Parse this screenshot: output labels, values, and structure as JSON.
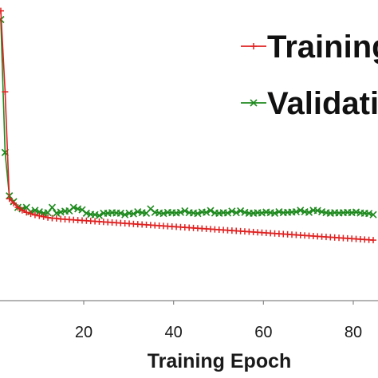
{
  "chart_data": {
    "type": "line",
    "xlabel": "Training Epoch",
    "ylabel": "",
    "title": "",
    "xlim": [
      0,
      88
    ],
    "ylim": [
      0,
      1.0
    ],
    "xticks": [
      20,
      40,
      60,
      80
    ],
    "grid": false,
    "legend_position": "top-right",
    "series": [
      {
        "name": "Training",
        "color": "#e02020",
        "marker": "plus",
        "x": [
          1,
          2,
          3,
          4,
          5,
          6,
          7,
          8,
          9,
          10,
          11,
          12,
          13,
          14,
          15,
          16,
          17,
          18,
          19,
          20,
          21,
          22,
          23,
          24,
          25,
          26,
          27,
          28,
          29,
          30,
          31,
          32,
          33,
          34,
          35,
          36,
          37,
          38,
          39,
          40,
          41,
          42,
          43,
          44,
          45,
          46,
          47,
          48,
          49,
          50,
          51,
          52,
          53,
          54,
          55,
          56,
          57,
          58,
          59,
          60,
          61,
          62,
          63,
          64,
          65,
          66,
          67,
          68,
          69,
          70,
          71,
          72,
          73,
          74,
          75,
          76,
          77,
          78,
          79,
          80,
          81,
          82,
          83,
          84,
          85,
          86,
          87,
          88
        ],
        "y": [
          0.98,
          0.7,
          0.33,
          0.315,
          0.3,
          0.29,
          0.283,
          0.278,
          0.274,
          0.271,
          0.268,
          0.265,
          0.263,
          0.262,
          0.26,
          0.259,
          0.258,
          0.257,
          0.256,
          0.255,
          0.254,
          0.253,
          0.252,
          0.251,
          0.25,
          0.249,
          0.248,
          0.247,
          0.246,
          0.245,
          0.244,
          0.243,
          0.242,
          0.241,
          0.24,
          0.239,
          0.238,
          0.237,
          0.236,
          0.235,
          0.234,
          0.233,
          0.232,
          0.231,
          0.23,
          0.229,
          0.228,
          0.227,
          0.226,
          0.225,
          0.224,
          0.223,
          0.222,
          0.221,
          0.22,
          0.219,
          0.218,
          0.217,
          0.216,
          0.215,
          0.214,
          0.213,
          0.212,
          0.211,
          0.21,
          0.209,
          0.208,
          0.207,
          0.206,
          0.205,
          0.204,
          0.203,
          0.202,
          0.201,
          0.2,
          0.199,
          0.198,
          0.197,
          0.196,
          0.195,
          0.194,
          0.193,
          0.192,
          0.191,
          0.19,
          0.189,
          0.188,
          0.187
        ]
      },
      {
        "name": "Validation",
        "color": "#1e8a1e",
        "marker": "x",
        "x": [
          1,
          2,
          3,
          4,
          5,
          6,
          7,
          8,
          9,
          10,
          11,
          12,
          13,
          14,
          15,
          16,
          17,
          18,
          19,
          20,
          21,
          22,
          23,
          24,
          25,
          26,
          27,
          28,
          29,
          30,
          31,
          32,
          33,
          34,
          35,
          36,
          37,
          38,
          39,
          40,
          41,
          42,
          43,
          44,
          45,
          46,
          47,
          48,
          49,
          50,
          51,
          52,
          53,
          54,
          55,
          56,
          57,
          58,
          59,
          60,
          61,
          62,
          63,
          64,
          65,
          66,
          67,
          68,
          69,
          70,
          71,
          72,
          73,
          74,
          75,
          76,
          77,
          78,
          79,
          80,
          81,
          82,
          83,
          84,
          85,
          86,
          87,
          88
        ],
        "y": [
          0.95,
          0.49,
          0.34,
          0.32,
          0.3,
          0.295,
          0.3,
          0.285,
          0.29,
          0.285,
          0.28,
          0.282,
          0.3,
          0.28,
          0.284,
          0.287,
          0.288,
          0.3,
          0.295,
          0.292,
          0.28,
          0.276,
          0.275,
          0.272,
          0.28,
          0.28,
          0.282,
          0.281,
          0.28,
          0.275,
          0.28,
          0.278,
          0.285,
          0.282,
          0.28,
          0.295,
          0.283,
          0.281,
          0.279,
          0.283,
          0.282,
          0.281,
          0.283,
          0.288,
          0.282,
          0.281,
          0.279,
          0.284,
          0.283,
          0.289,
          0.281,
          0.28,
          0.282,
          0.281,
          0.287,
          0.282,
          0.288,
          0.283,
          0.28,
          0.28,
          0.282,
          0.281,
          0.284,
          0.282,
          0.28,
          0.285,
          0.282,
          0.283,
          0.284,
          0.285,
          0.29,
          0.285,
          0.283,
          0.29,
          0.289,
          0.285,
          0.282,
          0.28,
          0.282,
          0.281,
          0.282,
          0.283,
          0.282,
          0.284,
          0.281,
          0.28,
          0.279,
          0.275
        ]
      }
    ]
  }
}
